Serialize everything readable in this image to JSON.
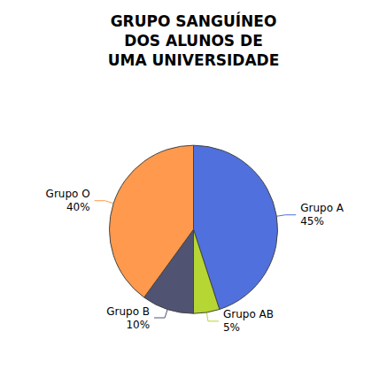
{
  "chart_data": {
    "type": "pie",
    "title": "GRUPO SANGUÍNEO\nDOS ALUNOS DE\nUMA UNIVERSIDADE",
    "categories": [
      "Grupo A",
      "Grupo AB",
      "Grupo B",
      "Grupo O"
    ],
    "values": [
      45,
      5,
      10,
      40
    ],
    "value_labels": [
      "45%",
      "5%",
      "10%",
      "40%"
    ],
    "data_labels": true
  }
}
